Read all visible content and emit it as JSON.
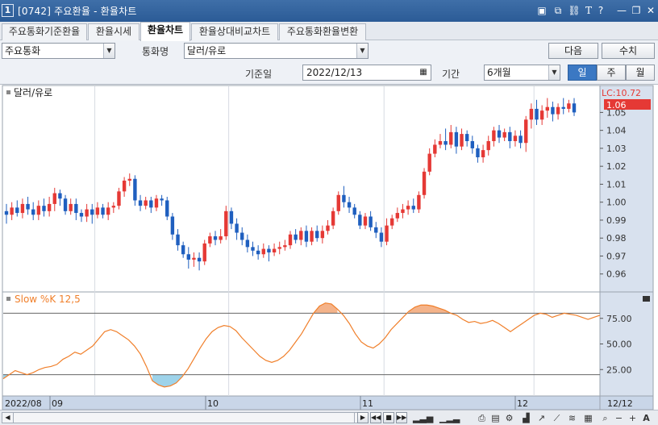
{
  "window": {
    "number": "1",
    "title": "[0742] 주요환율 - 환율차트",
    "icons": [
      "window-list-icon",
      "copy-window-icon",
      "link-icon",
      "text-size-icon",
      "help-icon",
      "minimize-icon",
      "restore-icon",
      "close-icon"
    ]
  },
  "tabs": [
    "주요통화기준환율",
    "환율시세",
    "환율차트",
    "환율상대비교차트",
    "주요통화환율변환"
  ],
  "active_tab": "환율차트",
  "controls": {
    "group_select": "주요통화",
    "currency_label": "통화명",
    "currency_select": "달러/유로",
    "next_button": "다음",
    "value_button": "수치",
    "base_date_label": "기준일",
    "base_date": "2022/12/13",
    "period_label": "기간",
    "period_select": "6개월",
    "interval_day": "일",
    "interval_week": "주",
    "interval_month": "월"
  },
  "colors": {
    "up": "#e53935",
    "down": "#1f5fbf",
    "stoch": "#f07f2a",
    "overbought_fill": "#f4b38a",
    "oversold_fill": "#9ed3ea"
  },
  "chart_data": [
    {
      "type": "candlestick",
      "title": "달러/유로",
      "y_ticks": [
        "1.05",
        "1.04",
        "1.03",
        "1.02",
        "1.01",
        "1.00",
        "0.99",
        "0.98",
        "0.97",
        "0.96"
      ],
      "ylim": [
        0.95,
        1.065
      ],
      "current_label": "1.06",
      "lc_label": "LC:10.72",
      "x_ticks": [
        "2022/08",
        "09",
        "10",
        "11",
        "12",
        "12/12"
      ],
      "candles": [
        [
          0.995,
          0.993,
          0.999,
          0.988
        ],
        [
          0.993,
          0.997,
          1.0,
          0.99
        ],
        [
          0.997,
          0.994,
          1.001,
          0.992
        ],
        [
          0.994,
          0.999,
          1.002,
          0.991
        ],
        [
          0.999,
          0.996,
          1.003,
          0.993
        ],
        [
          0.996,
          0.993,
          1.0,
          0.99
        ],
        [
          0.993,
          0.998,
          1.001,
          0.99
        ],
        [
          0.998,
          0.995,
          1.002,
          0.992
        ],
        [
          0.995,
          0.999,
          1.003,
          0.992
        ],
        [
          0.999,
          1.005,
          1.008,
          0.995
        ],
        [
          1.005,
          1.002,
          1.007,
          0.998
        ],
        [
          1.002,
          0.995,
          1.004,
          0.993
        ],
        [
          0.995,
          0.999,
          1.002,
          0.993
        ],
        [
          0.999,
          0.994,
          1.002,
          0.99
        ],
        [
          0.994,
          0.992,
          0.996,
          0.989
        ],
        [
          0.992,
          0.996,
          0.999,
          0.989
        ],
        [
          0.996,
          0.993,
          0.999,
          0.988
        ],
        [
          0.993,
          0.997,
          1.0,
          0.991
        ],
        [
          0.997,
          0.993,
          0.999,
          0.991
        ],
        [
          0.993,
          0.997,
          1.0,
          0.99
        ],
        [
          0.997,
          0.998,
          1.0,
          0.994
        ],
        [
          0.998,
          1.006,
          1.008,
          0.996
        ],
        [
          1.006,
          1.012,
          1.014,
          1.003
        ],
        [
          1.012,
          1.013,
          1.016,
          1.009
        ],
        [
          1.013,
          1.001,
          1.015,
          0.998
        ],
        [
          1.001,
          0.998,
          1.004,
          0.995
        ],
        [
          0.998,
          1.001,
          1.003,
          0.996
        ],
        [
          1.001,
          0.997,
          1.003,
          0.994
        ],
        [
          0.997,
          1.002,
          1.004,
          0.995
        ],
        [
          1.002,
          1.001,
          1.004,
          0.998
        ],
        [
          1.001,
          0.992,
          1.003,
          0.99
        ],
        [
          0.992,
          0.982,
          0.994,
          0.979
        ],
        [
          0.982,
          0.976,
          0.985,
          0.973
        ],
        [
          0.976,
          0.971,
          0.978,
          0.969
        ],
        [
          0.971,
          0.968,
          0.975,
          0.963
        ],
        [
          0.968,
          0.969,
          0.972,
          0.964
        ],
        [
          0.969,
          0.967,
          0.972,
          0.962
        ],
        [
          0.967,
          0.977,
          0.979,
          0.965
        ],
        [
          0.977,
          0.981,
          0.983,
          0.975
        ],
        [
          0.981,
          0.979,
          0.984,
          0.976
        ],
        [
          0.979,
          0.981,
          0.985,
          0.977
        ],
        [
          0.981,
          0.995,
          0.998,
          0.979
        ],
        [
          0.995,
          0.988,
          0.997,
          0.985
        ],
        [
          0.988,
          0.983,
          0.991,
          0.979
        ],
        [
          0.983,
          0.979,
          0.986,
          0.976
        ],
        [
          0.979,
          0.975,
          0.982,
          0.972
        ],
        [
          0.975,
          0.973,
          0.978,
          0.97
        ],
        [
          0.973,
          0.971,
          0.976,
          0.968
        ],
        [
          0.971,
          0.974,
          0.977,
          0.969
        ],
        [
          0.974,
          0.972,
          0.976,
          0.967
        ],
        [
          0.972,
          0.974,
          0.977,
          0.97
        ],
        [
          0.974,
          0.975,
          0.978,
          0.971
        ],
        [
          0.975,
          0.976,
          0.979,
          0.973
        ],
        [
          0.976,
          0.982,
          0.984,
          0.974
        ],
        [
          0.982,
          0.979,
          0.985,
          0.977
        ],
        [
          0.979,
          0.984,
          0.986,
          0.976
        ],
        [
          0.984,
          0.978,
          0.987,
          0.975
        ],
        [
          0.978,
          0.984,
          0.986,
          0.976
        ],
        [
          0.984,
          0.98,
          0.987,
          0.978
        ],
        [
          0.98,
          0.984,
          0.987,
          0.977
        ],
        [
          0.984,
          0.987,
          0.99,
          0.982
        ],
        [
          0.987,
          0.995,
          0.997,
          0.985
        ],
        [
          0.995,
          1.004,
          1.006,
          0.993
        ],
        [
          1.004,
          1.0,
          1.009,
          0.997
        ],
        [
          1.0,
          0.997,
          1.003,
          0.994
        ],
        [
          0.997,
          0.993,
          0.999,
          0.991
        ],
        [
          0.993,
          0.987,
          0.995,
          0.985
        ],
        [
          0.987,
          0.992,
          0.994,
          0.985
        ],
        [
          0.992,
          0.986,
          0.995,
          0.984
        ],
        [
          0.986,
          0.983,
          0.989,
          0.98
        ],
        [
          0.983,
          0.978,
          0.986,
          0.975
        ],
        [
          0.978,
          0.987,
          0.991,
          0.976
        ],
        [
          0.987,
          0.991,
          0.993,
          0.985
        ],
        [
          0.991,
          0.994,
          0.997,
          0.989
        ],
        [
          0.994,
          0.996,
          0.999,
          0.991
        ],
        [
          0.996,
          0.998,
          1.001,
          0.993
        ],
        [
          0.998,
          0.996,
          1.002,
          0.994
        ],
        [
          0.996,
          1.004,
          1.006,
          0.994
        ],
        [
          1.004,
          1.017,
          1.019,
          1.002
        ],
        [
          1.017,
          1.027,
          1.03,
          1.015
        ],
        [
          1.027,
          1.032,
          1.035,
          1.025
        ],
        [
          1.032,
          1.034,
          1.038,
          1.03
        ],
        [
          1.034,
          1.032,
          1.041,
          1.029
        ],
        [
          1.032,
          1.039,
          1.043,
          1.03
        ],
        [
          1.039,
          1.031,
          1.042,
          1.027
        ],
        [
          1.031,
          1.038,
          1.041,
          1.029
        ],
        [
          1.038,
          1.034,
          1.04,
          1.031
        ],
        [
          1.034,
          1.03,
          1.037,
          1.027
        ],
        [
          1.03,
          1.025,
          1.032,
          1.022
        ],
        [
          1.025,
          1.029,
          1.032,
          1.022
        ],
        [
          1.029,
          1.034,
          1.037,
          1.026
        ],
        [
          1.034,
          1.04,
          1.042,
          1.031
        ],
        [
          1.04,
          1.036,
          1.043,
          1.033
        ],
        [
          1.036,
          1.039,
          1.041,
          1.034
        ],
        [
          1.039,
          1.034,
          1.042,
          1.03
        ],
        [
          1.034,
          1.037,
          1.04,
          1.031
        ],
        [
          1.037,
          1.033,
          1.04,
          1.03
        ],
        [
          1.033,
          1.046,
          1.048,
          1.028
        ],
        [
          1.046,
          1.052,
          1.055,
          1.041
        ],
        [
          1.052,
          1.046,
          1.057,
          1.043
        ],
        [
          1.046,
          1.051,
          1.054,
          1.043
        ],
        [
          1.051,
          1.053,
          1.058,
          1.047
        ],
        [
          1.053,
          1.049,
          1.056,
          1.045
        ],
        [
          1.049,
          1.053,
          1.055,
          1.046
        ],
        [
          1.053,
          1.052,
          1.058,
          1.049
        ],
        [
          1.052,
          1.055,
          1.057,
          1.05
        ],
        [
          1.055,
          1.05,
          1.058,
          1.048
        ]
      ]
    },
    {
      "type": "line",
      "title": "Slow %K 12,5",
      "y_ticks": [
        "75.00",
        "50.00",
        "25.00"
      ],
      "ylim": [
        0,
        100
      ],
      "overbought": 80,
      "oversold": 20,
      "values": [
        16,
        20,
        24,
        22,
        20,
        22,
        25,
        27,
        28,
        30,
        35,
        38,
        42,
        40,
        44,
        48,
        55,
        62,
        64,
        62,
        58,
        54,
        48,
        40,
        28,
        14,
        10,
        8,
        9,
        12,
        18,
        26,
        36,
        46,
        55,
        62,
        66,
        68,
        67,
        63,
        56,
        50,
        44,
        38,
        34,
        32,
        34,
        38,
        44,
        52,
        60,
        70,
        80,
        87,
        90,
        89,
        84,
        78,
        70,
        60,
        52,
        48,
        46,
        50,
        56,
        64,
        70,
        76,
        82,
        86,
        88,
        88,
        87,
        85,
        83,
        80,
        78,
        74,
        71,
        72,
        70,
        71,
        73,
        70,
        66,
        62,
        66,
        70,
        74,
        78,
        80,
        79,
        76,
        78,
        80,
        79,
        78,
        76,
        74,
        76,
        78
      ]
    }
  ]
}
